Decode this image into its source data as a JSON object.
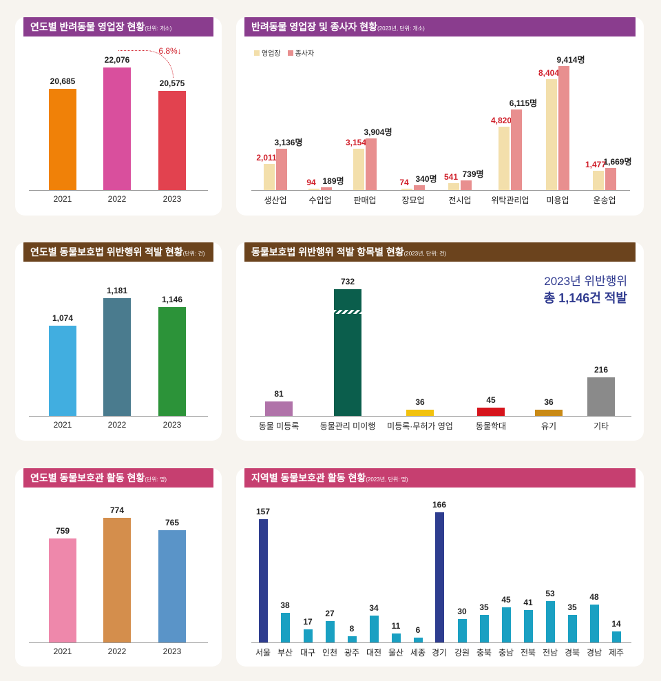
{
  "colors": {
    "purple": "#8a3d8e",
    "brown": "#6b431d",
    "pink": "#c63f70"
  },
  "chart_data": [
    {
      "id": "c1",
      "type": "bar",
      "title": "연도별 반려동물 영업장 현황",
      "unit": "(단위: 개소)",
      "categories": [
        "2021",
        "2022",
        "2023"
      ],
      "values": [
        20685,
        22076,
        20575
      ],
      "labels": [
        "20,685",
        "22,076",
        "20,575"
      ],
      "colors": [
        "#f08108",
        "#d94f9d",
        "#e2424f"
      ],
      "annotation": "6.8%↓"
    },
    {
      "id": "c2",
      "type": "bar",
      "title": "반려동물 영업장 및 종사자 현황",
      "unit": "(2023년, 단위: 개소)",
      "categories": [
        "생산업",
        "수입업",
        "판매업",
        "장묘업",
        "전시업",
        "위탁관리업",
        "미용업",
        "운송업"
      ],
      "series": [
        {
          "name": "영업장",
          "color": "#f3dfab",
          "values": [
            2011,
            94,
            3154,
            74,
            541,
            4820,
            8404,
            1477
          ],
          "labels": [
            "2,011",
            "94",
            "3,154",
            "74",
            "541",
            "4,820",
            "8,404",
            "1,477"
          ]
        },
        {
          "name": "종사자",
          "color": "#e88f8f",
          "values": [
            3136,
            189,
            3904,
            340,
            739,
            6115,
            9414,
            1669
          ],
          "labels": [
            "3,136명",
            "189명",
            "3,904명",
            "340명",
            "739명",
            "6,115명",
            "9,414명",
            "1,669명"
          ]
        }
      ]
    },
    {
      "id": "c3",
      "type": "bar",
      "title": "연도별 동물보호법 위반행위 적발 현황",
      "unit": "(단위: 건)",
      "categories": [
        "2021",
        "2022",
        "2023"
      ],
      "values": [
        1074,
        1181,
        1146
      ],
      "labels": [
        "1,074",
        "1,181",
        "1,146"
      ],
      "colors": [
        "#41aee0",
        "#4a7b8e",
        "#2c9339"
      ]
    },
    {
      "id": "c4",
      "type": "bar",
      "title": "동물보호법 위반행위 적발 항목별 현황",
      "unit": "(2023년, 단위: 건)",
      "categories": [
        "동물 미등록",
        "동물관리 미이행",
        "미등록·무허가 영업",
        "동물학대",
        "유기",
        "기타"
      ],
      "values": [
        81,
        732,
        36,
        45,
        36,
        216
      ],
      "labels": [
        "81",
        "732",
        "36",
        "45",
        "36",
        "216"
      ],
      "colors": [
        "#b073a9",
        "#0b5e4c",
        "#f2c20e",
        "#d6141c",
        "#c98a16",
        "#8a8a8a"
      ],
      "total_line1": "2023년 위반행위",
      "total_line2": "총 1,146건 적발"
    },
    {
      "id": "c5",
      "type": "bar",
      "title": "연도별 동물보호관 활동 현황",
      "unit": "(단위: 명)",
      "categories": [
        "2021",
        "2022",
        "2023"
      ],
      "values": [
        759,
        774,
        765
      ],
      "labels": [
        "759",
        "774",
        "765"
      ],
      "colors": [
        "#ee88ab",
        "#d48e4c",
        "#5a94c8"
      ]
    },
    {
      "id": "c6",
      "type": "bar",
      "title": "지역별 동물보호관 활동 현황",
      "unit": "(2023년, 단위: 명)",
      "categories": [
        "서울",
        "부산",
        "대구",
        "인천",
        "광주",
        "대전",
        "울산",
        "세종",
        "경기",
        "강원",
        "충북",
        "충남",
        "전북",
        "전남",
        "경북",
        "경남",
        "제주"
      ],
      "values": [
        157,
        38,
        17,
        27,
        8,
        34,
        11,
        6,
        166,
        30,
        35,
        45,
        41,
        53,
        35,
        48,
        14
      ],
      "labels": [
        "157",
        "38",
        "17",
        "27",
        "8",
        "34",
        "11",
        "6",
        "166",
        "30",
        "35",
        "45",
        "41",
        "53",
        "35",
        "48",
        "14"
      ],
      "colors": [
        "#2e3d8f",
        "#1aa0c2",
        "#1aa0c2",
        "#1aa0c2",
        "#1aa0c2",
        "#1aa0c2",
        "#1aa0c2",
        "#1aa0c2",
        "#2e3d8f",
        "#1aa0c2",
        "#1aa0c2",
        "#1aa0c2",
        "#1aa0c2",
        "#1aa0c2",
        "#1aa0c2",
        "#1aa0c2",
        "#1aa0c2"
      ]
    }
  ]
}
